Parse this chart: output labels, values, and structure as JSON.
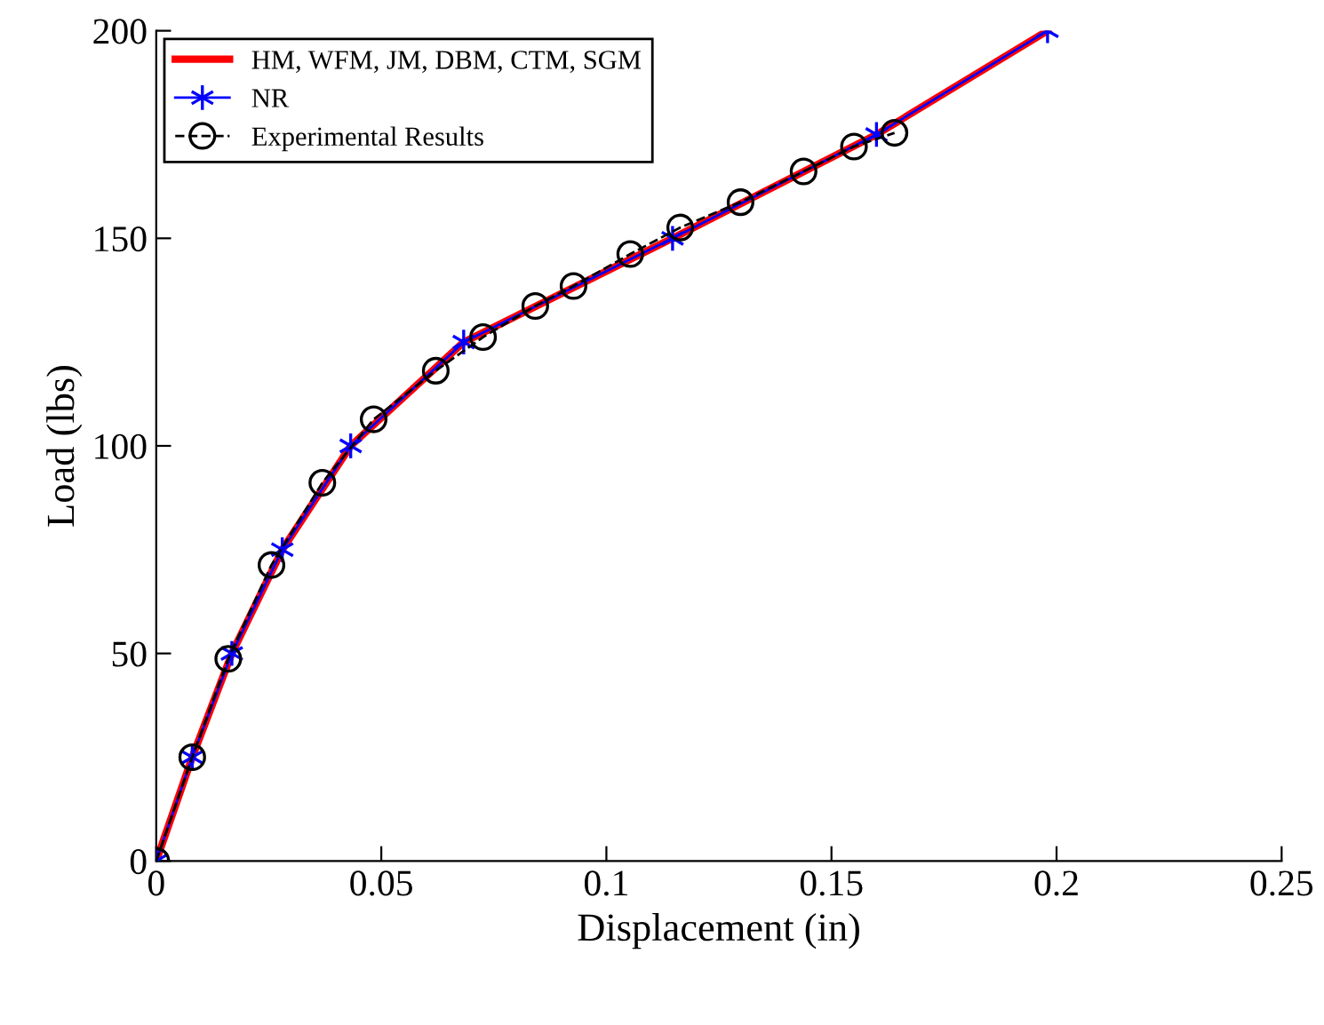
{
  "chart_data": {
    "type": "line",
    "xlabel": "Displacement (in)",
    "ylabel": "Load (lbs)",
    "xlim": [
      0,
      0.25
    ],
    "ylim": [
      0,
      200
    ],
    "xticks": [
      0,
      0.05,
      0.1,
      0.15,
      0.2,
      0.25
    ],
    "yticks": [
      0,
      50,
      100,
      150,
      200
    ],
    "grid": false,
    "legend": "top left",
    "series": [
      {
        "name": "HM, WFM, JM, DBM, CTM, SGM",
        "color": "#ff0000",
        "marker": "none",
        "line_style": "solid",
        "x": [
          0,
          0.008,
          0.0168,
          0.028,
          0.0432,
          0.0683,
          0.1147,
          0.16,
          0.198
        ],
        "values": [
          0,
          25,
          50,
          75,
          100,
          125,
          150,
          175,
          200
        ]
      },
      {
        "name": "NR",
        "color": "#0000ff",
        "marker": "cross",
        "line_style": "solid",
        "x": [
          0,
          0.008,
          0.0168,
          0.028,
          0.0432,
          0.0683,
          0.1147,
          0.16,
          0.198
        ],
        "values": [
          0,
          25,
          50,
          75,
          100,
          125,
          150,
          175,
          200
        ]
      },
      {
        "name": "Experimental Results",
        "color": "#000000",
        "marker": "circle",
        "line_style": "dashed",
        "x": [
          0,
          0.008,
          0.016,
          0.0256,
          0.0369,
          0.0483,
          0.0621,
          0.0726,
          0.0842,
          0.0927,
          0.1053,
          0.1164,
          0.1298,
          0.1438,
          0.155,
          0.164
        ],
        "values": [
          0,
          25,
          48.7,
          71.3,
          91.1,
          106.4,
          118.1,
          126.2,
          133.7,
          138.5,
          146.2,
          152.6,
          158.7,
          166.1,
          172.1,
          175.4
        ]
      }
    ]
  }
}
